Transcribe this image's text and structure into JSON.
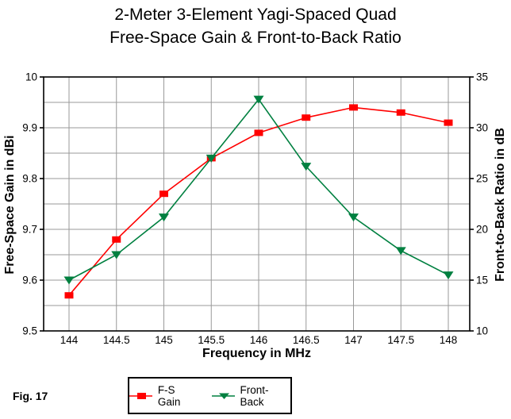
{
  "figure_label": "Fig. 17",
  "chart_data": {
    "type": "line",
    "title": "2-Meter 3-Element Yagi-Spaced Quad",
    "subtitle": "Free-Space Gain & Front-to-Back Ratio",
    "xlabel": "Frequency in MHz",
    "x": [
      144,
      144.5,
      145,
      145.5,
      146,
      146.5,
      147,
      147.5,
      148
    ],
    "x_tick_labels": [
      "144",
      "144.5",
      "145",
      "145.5",
      "146",
      "146.5",
      "147",
      "147.5",
      "148"
    ],
    "y_left": {
      "label": "Free-Space Gain in dBi",
      "lim": [
        9.5,
        10
      ],
      "ticks": [
        9.5,
        9.6,
        9.7,
        9.8,
        9.9,
        10
      ],
      "tick_labels": [
        "9.5",
        "9.6",
        "9.7",
        "9.8",
        "9.9",
        "10"
      ],
      "gridline_step": 0.05
    },
    "y_right": {
      "label": "Front-to-Back Ratio in dB",
      "lim": [
        10,
        35
      ],
      "ticks": [
        10,
        15,
        20,
        25,
        30,
        35
      ],
      "tick_labels": [
        "10",
        "15",
        "20",
        "25",
        "30",
        "35"
      ],
      "gridline_step": 2.5
    },
    "series": [
      {
        "name": "F-S Gain",
        "axis": "left",
        "color": "#FF0000",
        "marker": "square",
        "values": [
          9.57,
          9.68,
          9.77,
          9.84,
          9.89,
          9.92,
          9.94,
          9.93,
          9.91
        ]
      },
      {
        "name": "Front-Back",
        "axis": "right",
        "color": "#008040",
        "marker": "triangle-down",
        "values": [
          15.0,
          17.5,
          21.2,
          27.0,
          32.8,
          26.2,
          21.2,
          17.9,
          15.5
        ]
      }
    ],
    "grid": true,
    "legend_position": "bottom-center"
  },
  "colors": {
    "background": "#FFFFFF",
    "gridline": "#999999",
    "frame": "#000000",
    "text": "#000000"
  }
}
